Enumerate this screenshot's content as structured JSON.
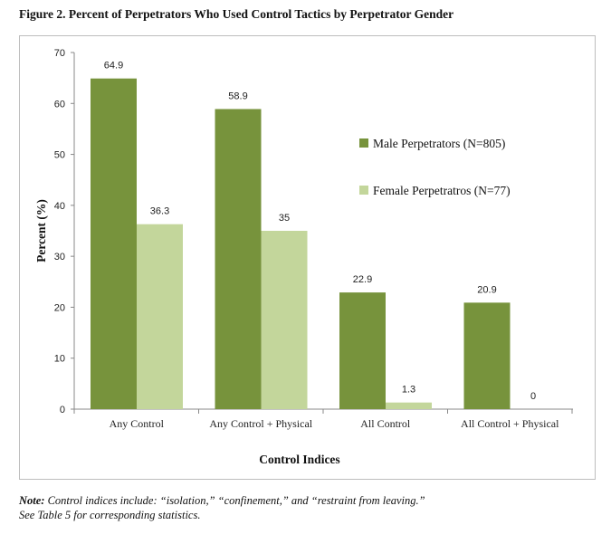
{
  "figure": {
    "title": "Figure 2. Percent of Perpetrators Who Used Control Tactics by Perpetrator Gender",
    "note_label": "Note:",
    "note_line1": "Control indices include: “isolation,” “confinement,” and “restraint from leaving.”",
    "note_line2": "See Table 5 for corresponding statistics."
  },
  "chart_data": {
    "type": "bar",
    "title": "",
    "xlabel": "Control Indices",
    "ylabel": "Percent (%)",
    "ylim": [
      0,
      70
    ],
    "yticks": [
      0,
      10,
      20,
      30,
      40,
      50,
      60,
      70
    ],
    "grid": false,
    "legend_position": "right",
    "categories": [
      "Any Control",
      "Any Control + Physical",
      "All Control",
      "All Control + Physical"
    ],
    "series": [
      {
        "name": "Male Perpetrators (N=805)",
        "color": "#77933c",
        "values": [
          64.9,
          58.9,
          22.9,
          20.9
        ]
      },
      {
        "name": "Female Perpetratros (N=77)",
        "color": "#c3d69b",
        "values": [
          36.3,
          35,
          1.3,
          0
        ]
      }
    ]
  }
}
